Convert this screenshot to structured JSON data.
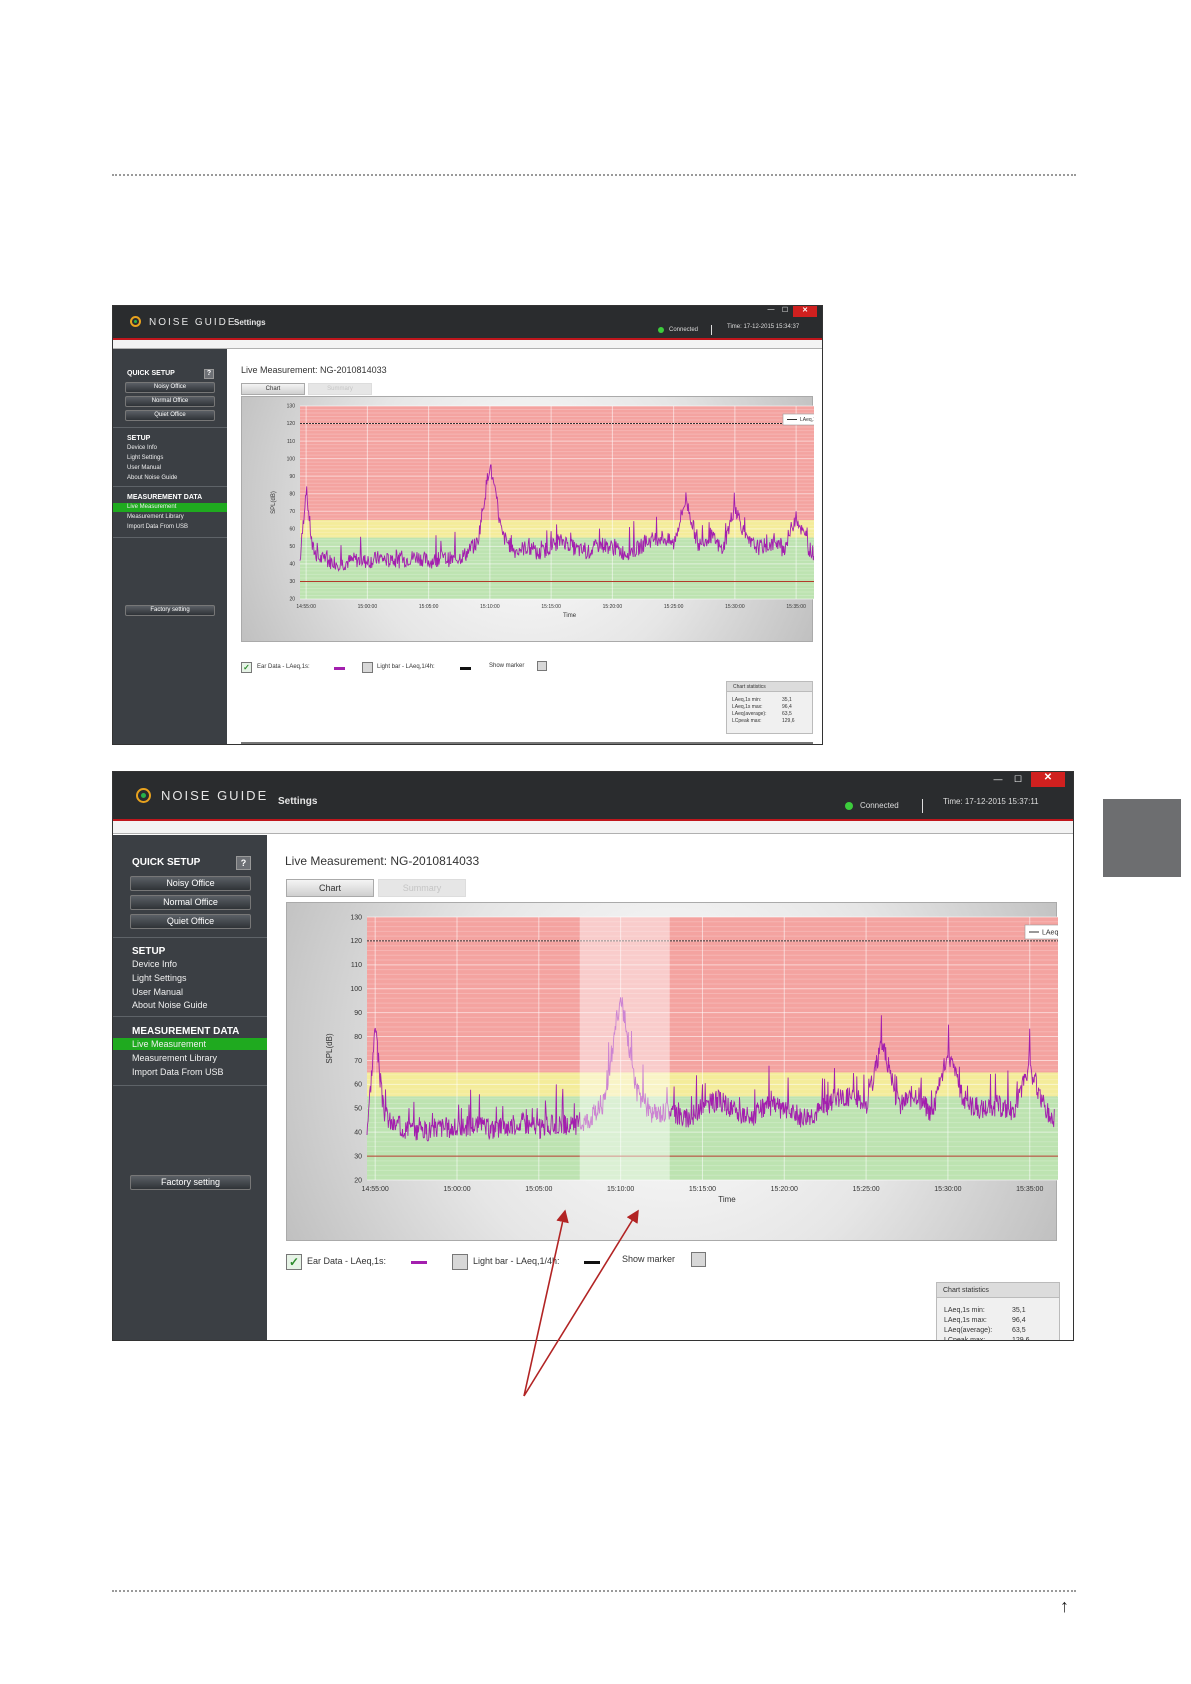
{
  "app": {
    "title": "NOISE GUIDE",
    "title_sep": "·",
    "section": "Settings",
    "status": "Connected",
    "window_controls": {
      "minimize": "—",
      "maximize": "☐",
      "close": "✕"
    }
  },
  "screens": [
    {
      "time": "Time: 17-12-2015 15:34:37",
      "page_title": "Live Measurement: NG-2010814033"
    },
    {
      "time": "Time: 17-12-2015 15:37:11",
      "page_title": "Live Measurement: NG-2010814033"
    }
  ],
  "sidebar": {
    "quick_setup": {
      "heading": "QUICK SETUP",
      "help": "?",
      "buttons": [
        "Noisy Office",
        "Normal Office",
        "Quiet Office"
      ]
    },
    "setup": {
      "heading": "SETUP",
      "items": [
        "Device Info",
        "Light Settings",
        "User Manual",
        "About Noise Guide"
      ]
    },
    "measurement_data": {
      "heading": "MEASUREMENT DATA",
      "items": [
        "Live Measurement",
        "Measurement Library",
        "Import Data From USB"
      ],
      "active_index": 0
    },
    "factory_button": "Factory setting"
  },
  "tabs": [
    "Chart",
    "Summary"
  ],
  "legend_controls": {
    "ear_data": "Ear Data - LAeq,1s:",
    "light_bar": "Light bar - LAeq,1/4h:",
    "show_marker": "Show marker",
    "ear_checked": true,
    "light_checked": false,
    "marker_checked": false,
    "check_glyph": "✓"
  },
  "statistics": {
    "title": "Chart statistics",
    "rows": [
      {
        "label": "LAeq,1s min:",
        "value": "35,1"
      },
      {
        "label": "LAeq,1s max:",
        "value": "96,4"
      },
      {
        "label": "LAeq(average):",
        "value": "63,5"
      },
      {
        "label": "LCpeak max:",
        "value": "129,6"
      }
    ]
  },
  "colors": {
    "accent_red": "#c0161c",
    "sidebar": "#3b3f44",
    "active_green": "#1faa1f",
    "zone_red": "#f4a3a0",
    "zone_yellow": "#f4ec9a",
    "zone_green": "#bde3b1",
    "series": "#a31fae",
    "arrow": "#b22424"
  },
  "footer_icon": "up-arrow-icon",
  "footer_arrow": "↑",
  "chart_data": {
    "type": "line",
    "xlabel": "Time",
    "ylabel": "SPL(dB)",
    "ylim": [
      20,
      130
    ],
    "y_ticks": [
      20,
      30,
      40,
      50,
      60,
      70,
      80,
      90,
      100,
      110,
      120,
      130
    ],
    "x_ticks": [
      "14:55:00",
      "15:00:00",
      "15:05:00",
      "15:10:00",
      "15:15:00",
      "15:20:00",
      "15:25:00",
      "15:30:00",
      "15:35:00"
    ],
    "x_start": "14:54:30",
    "x_end": "15:38:30",
    "data_end": "15:36:30",
    "zones": [
      {
        "from": 20,
        "to": 55,
        "color": "green"
      },
      {
        "from": 55,
        "to": 65,
        "color": "yellow"
      },
      {
        "from": 65,
        "to": 130,
        "color": "red"
      }
    ],
    "reference_lines": [
      120,
      30
    ],
    "legend_entry": "LAeq,1s",
    "legend_position": "top-right",
    "grid": true,
    "highlight": {
      "from": "15:07:30",
      "to": "15:13:00"
    },
    "stats": {
      "min": 35.1,
      "max": 96.4,
      "average": 63.5,
      "lcpeak_max": 129.6
    },
    "series": [
      {
        "name": "LAeq,1s",
        "x": [
          "14:54:30",
          "14:55:00",
          "14:55:30",
          "14:56:00",
          "14:57:00",
          "14:58:00",
          "14:59:00",
          "15:00:00",
          "15:01:00",
          "15:02:00",
          "15:03:00",
          "15:04:00",
          "15:05:00",
          "15:06:00",
          "15:07:00",
          "15:08:00",
          "15:09:00",
          "15:10:00",
          "15:11:00",
          "15:12:00",
          "15:13:00",
          "15:14:00",
          "15:15:00",
          "15:16:00",
          "15:17:00",
          "15:18:00",
          "15:19:00",
          "15:20:00",
          "15:21:00",
          "15:22:00",
          "15:23:00",
          "15:24:00",
          "15:25:00",
          "15:26:00",
          "15:27:00",
          "15:28:00",
          "15:29:00",
          "15:30:00",
          "15:31:00",
          "15:32:00",
          "15:33:00",
          "15:34:00",
          "15:35:00",
          "15:36:00",
          "15:36:30"
        ],
        "values": [
          40,
          82,
          48,
          42,
          40,
          39,
          41,
          40,
          42,
          40,
          41,
          43,
          40,
          42,
          41,
          44,
          51,
          96,
          55,
          46,
          48,
          44,
          49,
          52,
          47,
          45,
          50,
          48,
          45,
          47,
          52,
          54,
          50,
          76,
          49,
          55,
          46,
          72,
          51,
          48,
          50,
          47,
          66,
          48,
          44
        ],
        "noise_amplitude": 9
      }
    ]
  }
}
